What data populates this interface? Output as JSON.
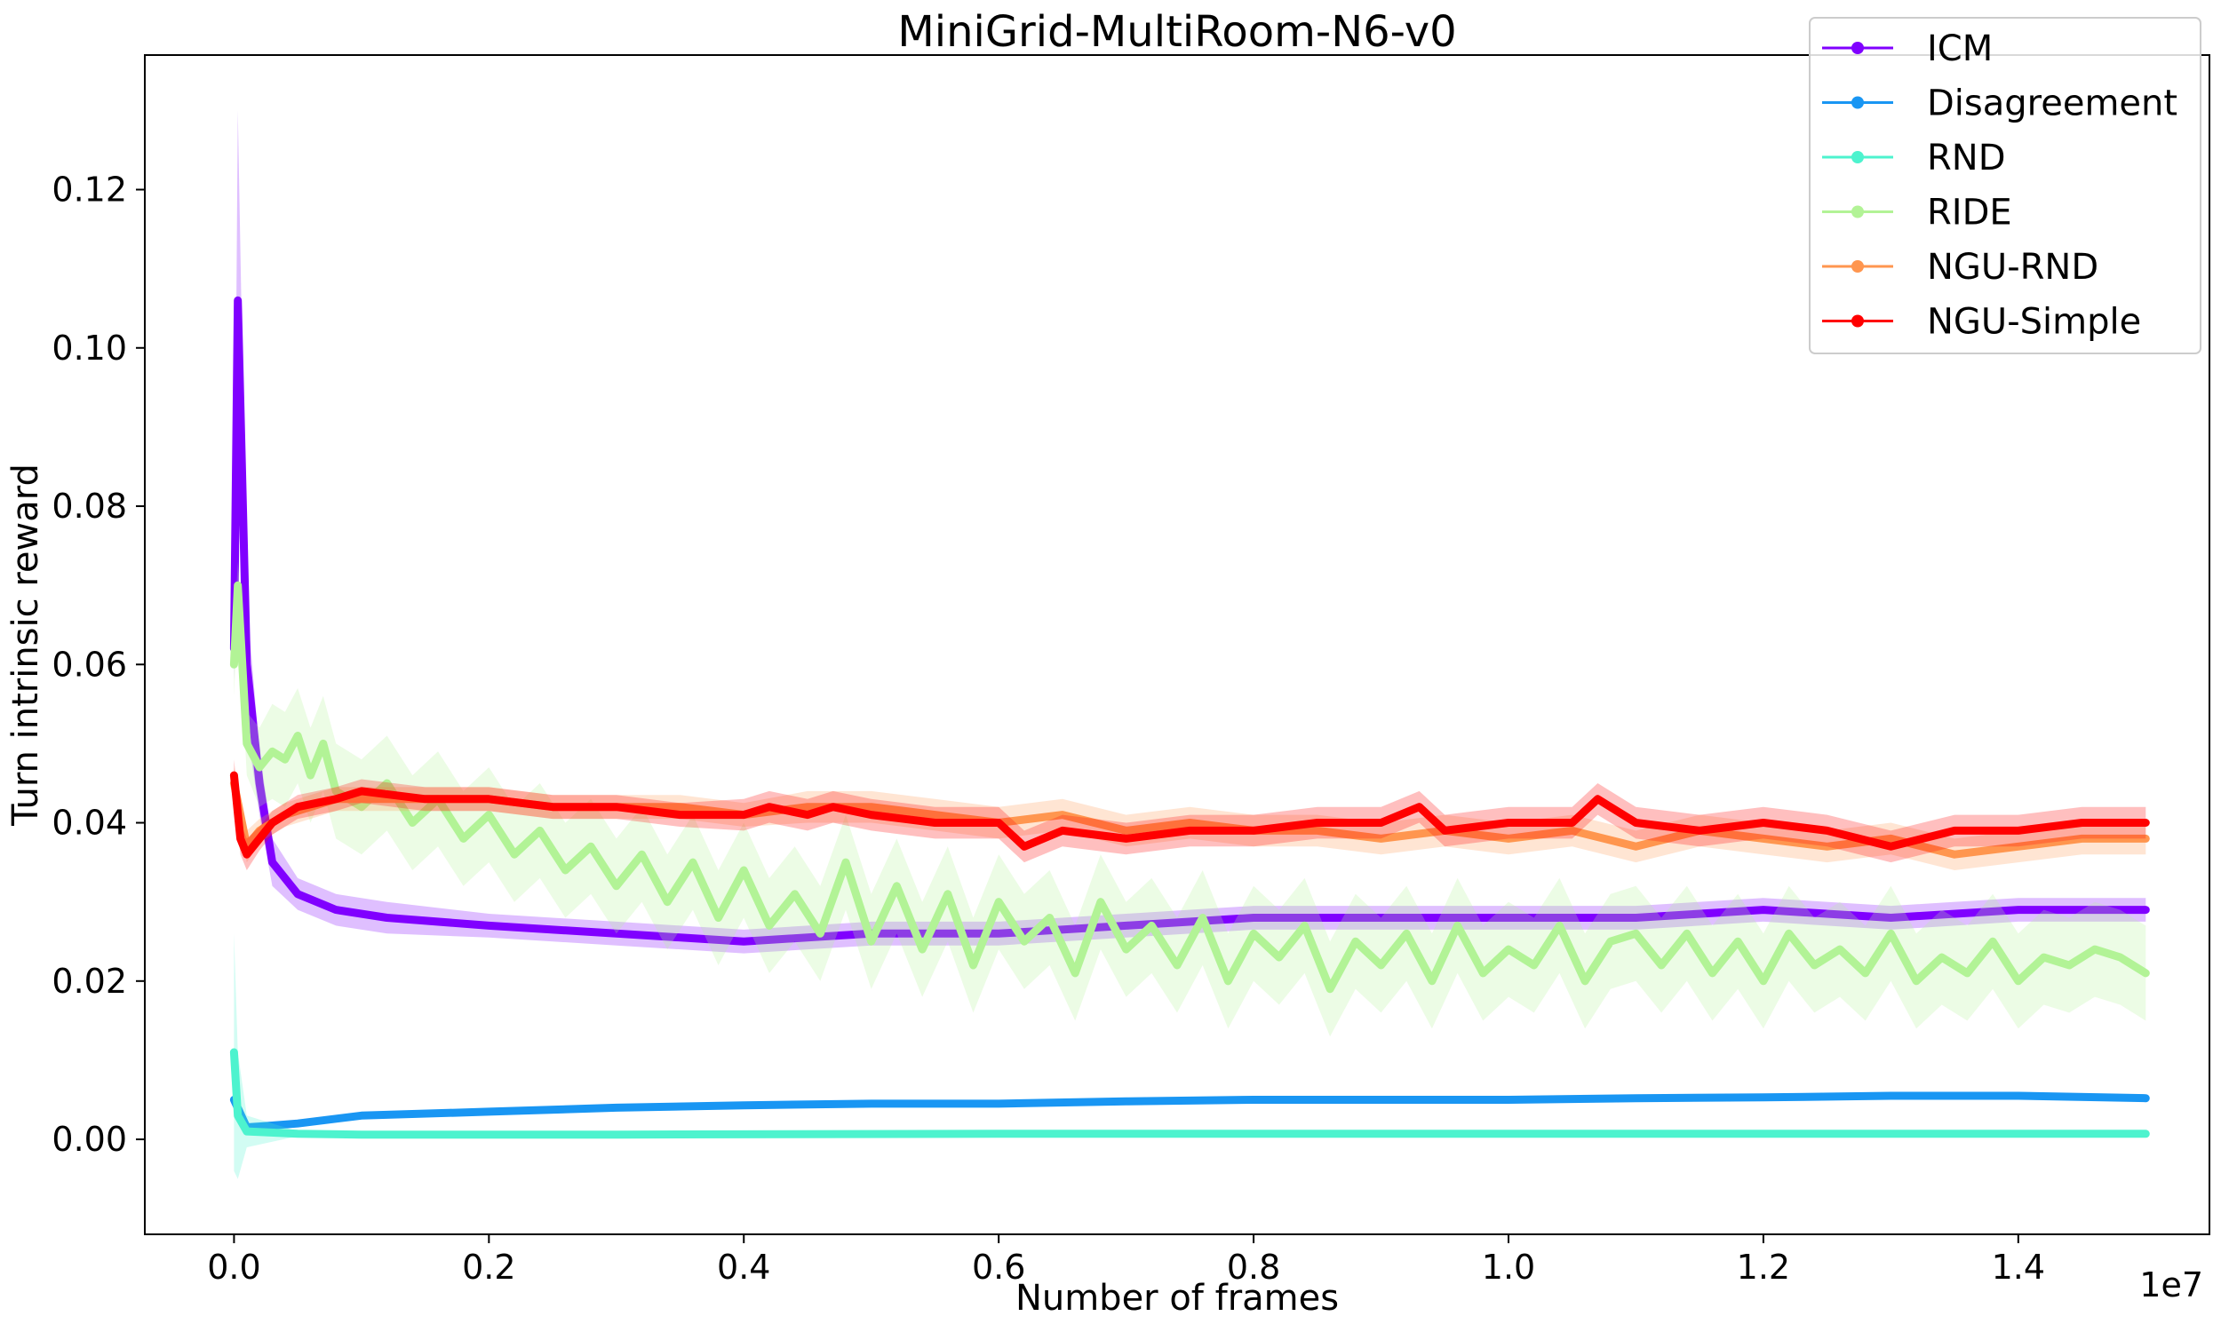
{
  "chart_data": {
    "type": "line",
    "title": "MiniGrid-MultiRoom-N6-v0",
    "xlabel": "Number of frames",
    "ylabel": "Turn intrinsic reward",
    "x_offset_label": "1e7",
    "xlim": [
      -0.07,
      1.55
    ],
    "ylim": [
      -0.012,
      0.137
    ],
    "x_ticks": [
      0.0,
      0.2,
      0.4,
      0.6,
      0.8,
      1.0,
      1.2,
      1.4
    ],
    "x_tick_labels": [
      "0.0",
      "0.2",
      "0.4",
      "0.6",
      "0.8",
      "1.0",
      "1.2",
      "1.4"
    ],
    "y_ticks": [
      0.0,
      0.02,
      0.04,
      0.06,
      0.08,
      0.1,
      0.12
    ],
    "y_tick_labels": [
      "0.00",
      "0.02",
      "0.04",
      "0.06",
      "0.08",
      "0.10",
      "0.12"
    ],
    "legend_position": "top-right",
    "grid": false,
    "series": [
      {
        "name": "ICM",
        "color": "#8000ff",
        "x": [
          0.0,
          0.003,
          0.01,
          0.02,
          0.03,
          0.05,
          0.08,
          0.12,
          0.2,
          0.3,
          0.4,
          0.5,
          0.6,
          0.7,
          0.8,
          0.9,
          1.0,
          1.1,
          1.2,
          1.3,
          1.4,
          1.5
        ],
        "y": [
          0.062,
          0.106,
          0.06,
          0.045,
          0.035,
          0.031,
          0.029,
          0.028,
          0.027,
          0.026,
          0.025,
          0.026,
          0.026,
          0.027,
          0.028,
          0.028,
          0.028,
          0.028,
          0.029,
          0.028,
          0.029,
          0.029
        ],
        "band": [
          0.004,
          0.024,
          0.008,
          0.004,
          0.003,
          0.002,
          0.002,
          0.002,
          0.0015,
          0.0015,
          0.0015,
          0.0015,
          0.0015,
          0.0015,
          0.0015,
          0.0015,
          0.0015,
          0.0015,
          0.0015,
          0.0015,
          0.0015,
          0.0015
        ]
      },
      {
        "name": "Disagreement",
        "color": "#1996f3",
        "x": [
          0.0,
          0.01,
          0.05,
          0.1,
          0.2,
          0.3,
          0.4,
          0.5,
          0.6,
          0.7,
          0.8,
          0.9,
          1.0,
          1.1,
          1.2,
          1.3,
          1.4,
          1.5
        ],
        "y": [
          0.005,
          0.0015,
          0.002,
          0.003,
          0.0035,
          0.004,
          0.0043,
          0.0045,
          0.0045,
          0.0048,
          0.005,
          0.005,
          0.005,
          0.0052,
          0.0053,
          0.0055,
          0.0055,
          0.0052
        ],
        "band": [
          0.001,
          0.0006,
          0.0004,
          0.0004,
          0.0004,
          0.0004,
          0.0004,
          0.0004,
          0.0004,
          0.0004,
          0.0004,
          0.0004,
          0.0004,
          0.0004,
          0.0004,
          0.0004,
          0.0004,
          0.0004
        ]
      },
      {
        "name": "RND",
        "color": "#4df3ce",
        "x": [
          0.0,
          0.003,
          0.01,
          0.05,
          0.1,
          0.3,
          0.6,
          0.9,
          1.2,
          1.5
        ],
        "y": [
          0.011,
          0.003,
          0.001,
          0.0007,
          0.0006,
          0.0006,
          0.0007,
          0.0007,
          0.0007,
          0.0007
        ],
        "band": [
          0.015,
          0.008,
          0.002,
          0.0003,
          0.0002,
          0.0002,
          0.0002,
          0.0002,
          0.0002,
          0.0002
        ]
      },
      {
        "name": "RIDE",
        "color": "#b2f396",
        "x": [
          0.0,
          0.003,
          0.01,
          0.02,
          0.03,
          0.04,
          0.05,
          0.06,
          0.07,
          0.08,
          0.1,
          0.12,
          0.14,
          0.16,
          0.18,
          0.2,
          0.22,
          0.24,
          0.26,
          0.28,
          0.3,
          0.32,
          0.34,
          0.36,
          0.38,
          0.4,
          0.42,
          0.44,
          0.46,
          0.48,
          0.5,
          0.52,
          0.54,
          0.56,
          0.58,
          0.6,
          0.62,
          0.64,
          0.66,
          0.68,
          0.7,
          0.72,
          0.74,
          0.76,
          0.78,
          0.8,
          0.82,
          0.84,
          0.86,
          0.88,
          0.9,
          0.92,
          0.94,
          0.96,
          0.98,
          1.0,
          1.02,
          1.04,
          1.06,
          1.08,
          1.1,
          1.12,
          1.14,
          1.16,
          1.18,
          1.2,
          1.22,
          1.24,
          1.26,
          1.28,
          1.3,
          1.32,
          1.34,
          1.36,
          1.38,
          1.4,
          1.42,
          1.44,
          1.46,
          1.48,
          1.5
        ],
        "y": [
          0.06,
          0.07,
          0.05,
          0.047,
          0.049,
          0.048,
          0.051,
          0.046,
          0.05,
          0.044,
          0.042,
          0.045,
          0.04,
          0.043,
          0.038,
          0.041,
          0.036,
          0.039,
          0.034,
          0.037,
          0.032,
          0.036,
          0.03,
          0.035,
          0.028,
          0.034,
          0.027,
          0.031,
          0.026,
          0.035,
          0.025,
          0.032,
          0.024,
          0.031,
          0.022,
          0.03,
          0.025,
          0.028,
          0.021,
          0.03,
          0.024,
          0.027,
          0.022,
          0.028,
          0.02,
          0.026,
          0.023,
          0.027,
          0.019,
          0.025,
          0.022,
          0.026,
          0.02,
          0.027,
          0.021,
          0.024,
          0.022,
          0.027,
          0.02,
          0.025,
          0.026,
          0.022,
          0.026,
          0.021,
          0.025,
          0.02,
          0.026,
          0.022,
          0.024,
          0.021,
          0.026,
          0.02,
          0.023,
          0.021,
          0.025,
          0.02,
          0.023,
          0.022,
          0.024,
          0.023,
          0.021
        ],
        "band": [
          0.004,
          0.003,
          0.004,
          0.005,
          0.006,
          0.006,
          0.006,
          0.006,
          0.006,
          0.006,
          0.006,
          0.006,
          0.006,
          0.006,
          0.006,
          0.006,
          0.006,
          0.006,
          0.006,
          0.006,
          0.006,
          0.006,
          0.006,
          0.006,
          0.006,
          0.006,
          0.006,
          0.006,
          0.006,
          0.006,
          0.006,
          0.006,
          0.006,
          0.006,
          0.006,
          0.006,
          0.006,
          0.006,
          0.006,
          0.006,
          0.006,
          0.006,
          0.006,
          0.006,
          0.006,
          0.006,
          0.006,
          0.006,
          0.006,
          0.006,
          0.006,
          0.006,
          0.006,
          0.006,
          0.006,
          0.006,
          0.006,
          0.006,
          0.006,
          0.006,
          0.006,
          0.006,
          0.006,
          0.006,
          0.006,
          0.006,
          0.006,
          0.006,
          0.006,
          0.006,
          0.006,
          0.006,
          0.006,
          0.006,
          0.006,
          0.006,
          0.006,
          0.006,
          0.006,
          0.006,
          0.006
        ]
      },
      {
        "name": "NGU-RND",
        "color": "#ff964f",
        "x": [
          0.0,
          0.01,
          0.02,
          0.04,
          0.06,
          0.08,
          0.1,
          0.15,
          0.2,
          0.25,
          0.3,
          0.35,
          0.4,
          0.45,
          0.5,
          0.55,
          0.6,
          0.65,
          0.7,
          0.75,
          0.8,
          0.85,
          0.9,
          0.95,
          1.0,
          1.05,
          1.1,
          1.15,
          1.2,
          1.25,
          1.3,
          1.35,
          1.4,
          1.45,
          1.5
        ],
        "y": [
          0.045,
          0.037,
          0.039,
          0.041,
          0.042,
          0.043,
          0.043,
          0.043,
          0.043,
          0.042,
          0.042,
          0.042,
          0.041,
          0.042,
          0.042,
          0.041,
          0.04,
          0.041,
          0.039,
          0.04,
          0.039,
          0.039,
          0.038,
          0.039,
          0.038,
          0.039,
          0.037,
          0.039,
          0.038,
          0.037,
          0.038,
          0.036,
          0.037,
          0.038,
          0.038
        ],
        "band": [
          0.002,
          0.002,
          0.0015,
          0.0015,
          0.0015,
          0.0015,
          0.0015,
          0.0015,
          0.0015,
          0.0015,
          0.0015,
          0.0015,
          0.0015,
          0.002,
          0.002,
          0.002,
          0.002,
          0.002,
          0.002,
          0.002,
          0.002,
          0.002,
          0.002,
          0.002,
          0.002,
          0.002,
          0.002,
          0.002,
          0.002,
          0.002,
          0.002,
          0.002,
          0.002,
          0.002,
          0.002
        ]
      },
      {
        "name": "NGU-Simple",
        "color": "#ff0000",
        "x": [
          0.0,
          0.005,
          0.01,
          0.02,
          0.03,
          0.05,
          0.08,
          0.1,
          0.15,
          0.2,
          0.25,
          0.3,
          0.35,
          0.4,
          0.42,
          0.45,
          0.47,
          0.5,
          0.55,
          0.6,
          0.62,
          0.65,
          0.7,
          0.75,
          0.8,
          0.85,
          0.9,
          0.93,
          0.95,
          1.0,
          1.05,
          1.07,
          1.1,
          1.15,
          1.2,
          1.25,
          1.3,
          1.35,
          1.4,
          1.45,
          1.5
        ],
        "y": [
          0.046,
          0.038,
          0.036,
          0.038,
          0.04,
          0.042,
          0.043,
          0.044,
          0.043,
          0.043,
          0.042,
          0.042,
          0.041,
          0.041,
          0.042,
          0.041,
          0.042,
          0.041,
          0.04,
          0.04,
          0.037,
          0.039,
          0.038,
          0.039,
          0.039,
          0.04,
          0.04,
          0.042,
          0.039,
          0.04,
          0.04,
          0.043,
          0.04,
          0.039,
          0.04,
          0.039,
          0.037,
          0.039,
          0.039,
          0.04,
          0.04
        ],
        "band": [
          0.002,
          0.002,
          0.002,
          0.0015,
          0.0015,
          0.0015,
          0.0015,
          0.0015,
          0.0015,
          0.0015,
          0.0015,
          0.0015,
          0.0015,
          0.002,
          0.002,
          0.002,
          0.002,
          0.002,
          0.002,
          0.002,
          0.002,
          0.002,
          0.002,
          0.002,
          0.002,
          0.002,
          0.002,
          0.002,
          0.002,
          0.002,
          0.002,
          0.002,
          0.002,
          0.002,
          0.002,
          0.002,
          0.002,
          0.002,
          0.002,
          0.002,
          0.002
        ]
      }
    ]
  }
}
